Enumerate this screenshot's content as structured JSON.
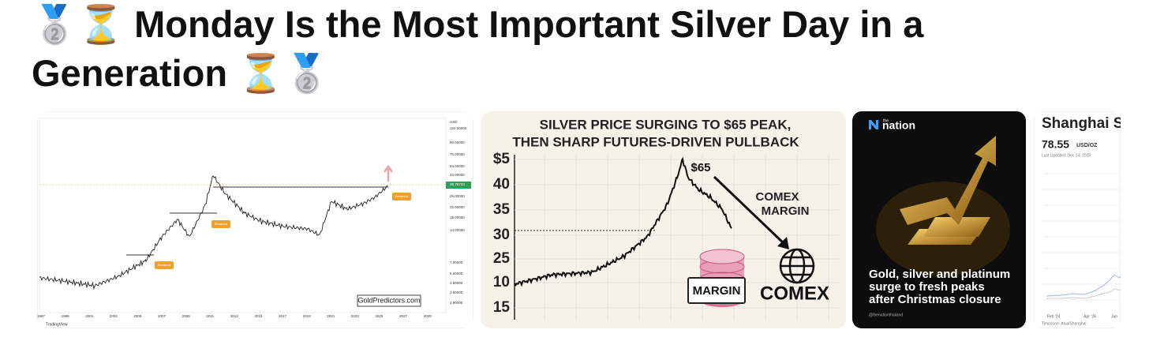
{
  "post": {
    "title": "🥈⏳ Monday Is the Most Important Silver Day in a Generation ⏳🥈"
  },
  "images": [
    {
      "y_labels": [
        "USD",
        "120.00000",
        "90.00000",
        "70.00000",
        "54.00000",
        "44.00000",
        "36.79733",
        "28.00000",
        "22.00000",
        "18.00000",
        "14.00000",
        "7.00000",
        "5.50000",
        "4.50000",
        "3.60000",
        "2.90000"
      ],
      "x_labels": [
        "1997",
        "1999",
        "2001",
        "2003",
        "2005",
        "2007",
        "2009",
        "2011",
        "2013",
        "2015",
        "2017",
        "2019",
        "2021",
        "2023",
        "2025",
        "2027",
        "2029"
      ],
      "tags": [
        "Breakout",
        "Breakout",
        "Breakout"
      ],
      "watermark": "GoldPredictors.com",
      "footer": "TradingView"
    },
    {
      "title": [
        "SILVER PRICE SURGING TO $65 PEAK,",
        "THEN SHARP FUTURES-DRIVEN PULLBACK"
      ],
      "y_labels": [
        "$5",
        "40",
        "35",
        "30",
        "25",
        "10",
        "15"
      ],
      "peak_label": "$65",
      "annotation": [
        "COMEX",
        "MARGIN"
      ],
      "coin_label": "MARGIN",
      "globe_label": "COMEX"
    },
    {
      "logo_small": "the",
      "logo": "nation",
      "caption": [
        "Gold, silver and platinum",
        "surge to fresh peaks",
        "after Christmas closure"
      ],
      "handle": "@thenationthailand"
    },
    {
      "title": "Shanghai S",
      "price": "78.55",
      "unit": "USD/OZ",
      "updated": "Last Updated: Dec 24, 2025",
      "x_labels": [
        "Feb '24",
        "Apr '24",
        "Jun"
      ],
      "timezone": "Timezone: Asia/Shanghai"
    }
  ]
}
